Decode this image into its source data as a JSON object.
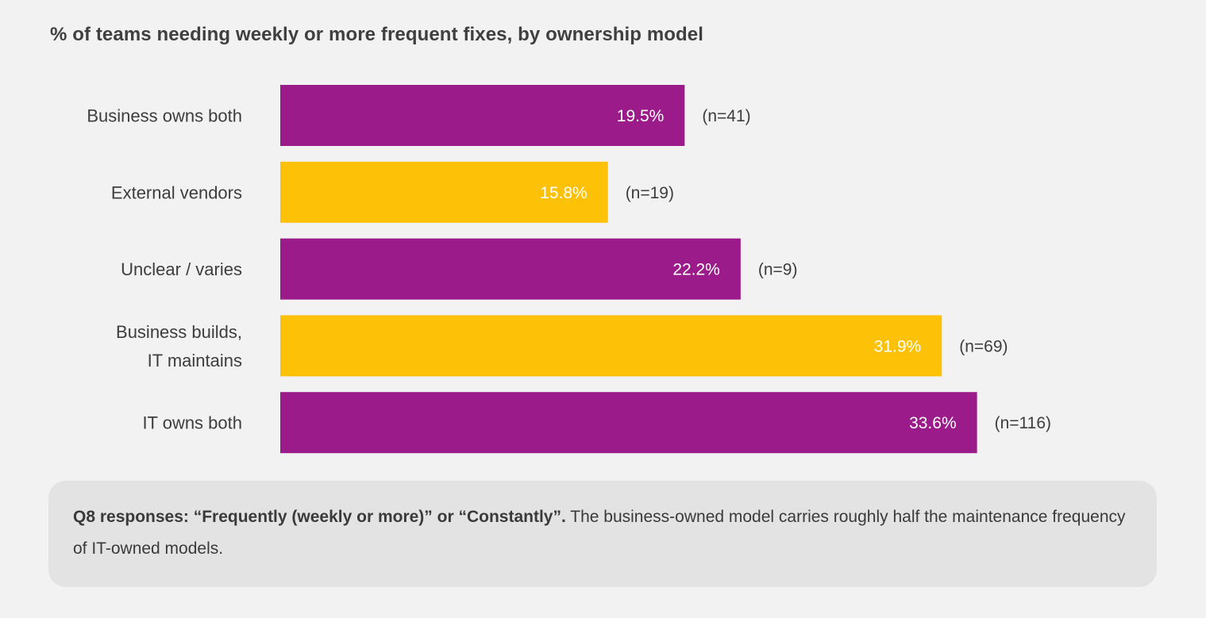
{
  "title": "% of teams needing weekly or more frequent fixes, by ownership model",
  "chart_data": {
    "type": "bar",
    "orientation": "horizontal",
    "title": "% of teams needing weekly or more frequent fixes, by ownership model",
    "xlim": [
      0,
      38
    ],
    "grid": false,
    "legend": "none",
    "bars": [
      {
        "lines": [
          "Business owns both"
        ],
        "value": 19.5,
        "value_label": "19.5%",
        "n_label": "(n=41)",
        "color": "#9b1b8a"
      },
      {
        "lines": [
          "External vendors"
        ],
        "value": 15.8,
        "value_label": "15.8%",
        "n_label": "(n=19)",
        "color": "#fdc107"
      },
      {
        "lines": [
          "Unclear / varies"
        ],
        "value": 22.2,
        "value_label": "22.2%",
        "n_label": "(n=9)",
        "color": "#9b1b8a"
      },
      {
        "lines": [
          "Business builds,",
          "IT maintains"
        ],
        "value": 31.9,
        "value_label": "31.9%",
        "n_label": "(n=69)",
        "color": "#fdc107"
      },
      {
        "lines": [
          "IT owns both"
        ],
        "value": 33.6,
        "value_label": "33.6%",
        "n_label": "(n=116)",
        "color": "#9b1b8a"
      }
    ]
  },
  "note": {
    "bold": "Q8 responses: “Frequently (weekly or more)” or “Constantly”.",
    "text": " The business-owned model carries roughly half the maintenance frequency of IT-owned models."
  }
}
